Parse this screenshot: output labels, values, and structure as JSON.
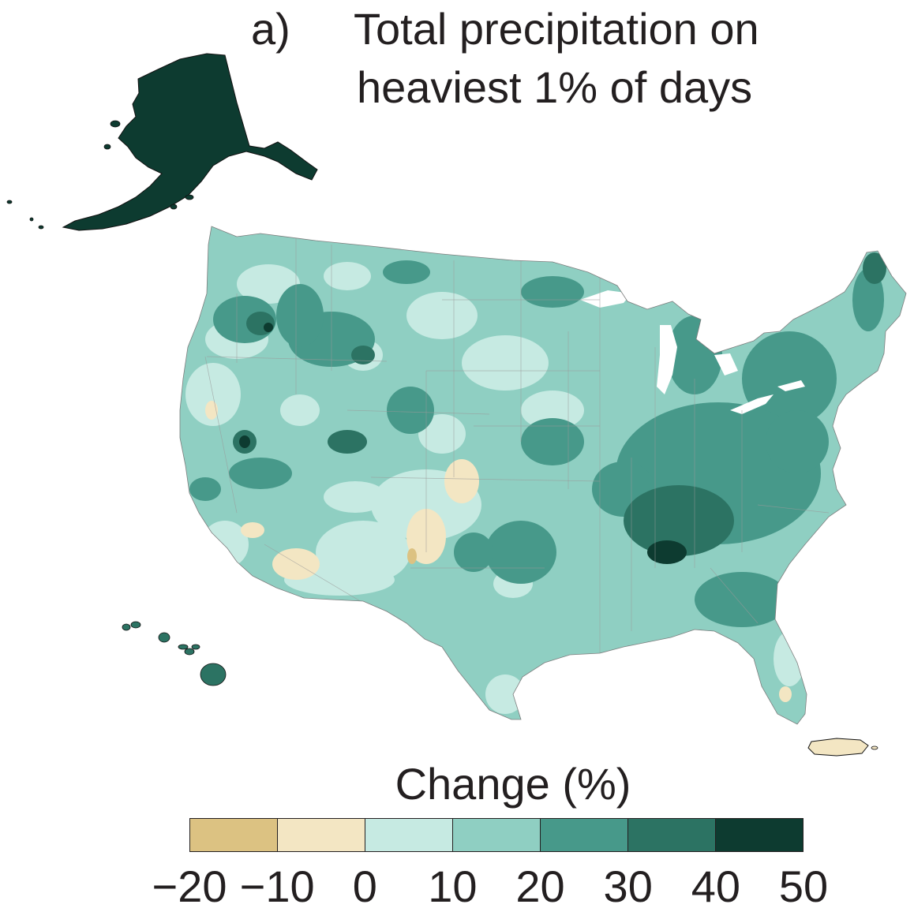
{
  "figure": {
    "panel_letter": "a)",
    "title_line_1": "Total precipitation on",
    "title_line_2": "heaviest 1% of days"
  },
  "map": {
    "regions": [
      {
        "name": "Alaska",
        "class": "40 to 50",
        "color": "#0d3b30"
      },
      {
        "name": "Hawaii",
        "class": "30 to 40",
        "color": "#2c7363"
      },
      {
        "name": "Puerto Rico",
        "class": "-10 to 0",
        "color": "#f3e6c3"
      },
      {
        "name": "Contiguous US",
        "class": "mostly 10 to 40",
        "color": "#8fcfc2"
      }
    ]
  },
  "legend": {
    "title": "Change (%)",
    "bins": [
      {
        "from": -20,
        "to": -10,
        "color": "#dcc282"
      },
      {
        "from": -10,
        "to": 0,
        "color": "#f3e6c3"
      },
      {
        "from": 0,
        "to": 10,
        "color": "#c6eae2"
      },
      {
        "from": 10,
        "to": 20,
        "color": "#8fcfc2"
      },
      {
        "from": 20,
        "to": 30,
        "color": "#47998a"
      },
      {
        "from": 30,
        "to": 40,
        "color": "#2c7363"
      },
      {
        "from": 40,
        "to": 50,
        "color": "#0d3b30"
      }
    ],
    "ticks": [
      "−20",
      "−10",
      "0",
      "10",
      "20",
      "30",
      "40",
      "50"
    ]
  }
}
